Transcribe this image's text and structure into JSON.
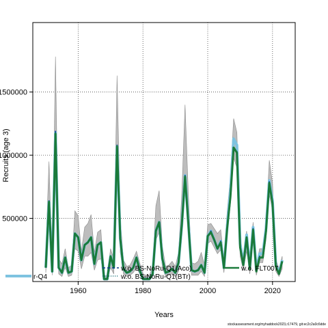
{
  "chart_data": {
    "type": "line",
    "xlabel": "Years",
    "ylabel": "Recruits (age 3)",
    "xlim": [
      1946,
      2027
    ],
    "ylim": [
      0,
      2050000
    ],
    "x_ticks": [
      1960,
      1980,
      2000,
      2020
    ],
    "y_ticks": [
      500000,
      1000000,
      1500000
    ],
    "y_tick_labels": [
      "500000",
      "1000000",
      "1500000"
    ],
    "grid": true,
    "legend_position": "bottom",
    "x": [
      1950,
      1951,
      1952,
      1953,
      1954,
      1955,
      1956,
      1957,
      1958,
      1959,
      1960,
      1961,
      1962,
      1963,
      1964,
      1965,
      1966,
      1967,
      1968,
      1969,
      1970,
      1971,
      1972,
      1973,
      1974,
      1975,
      1976,
      1977,
      1978,
      1979,
      1980,
      1981,
      1982,
      1983,
      1984,
      1985,
      1986,
      1987,
      1988,
      1989,
      1990,
      1991,
      1992,
      1993,
      1994,
      1995,
      1996,
      1997,
      1998,
      1999,
      2000,
      2001,
      2002,
      2003,
      2004,
      2005,
      2006,
      2007,
      2008,
      2009,
      2010,
      2011,
      2012,
      2013,
      2014,
      2015,
      2016,
      2017,
      2018,
      2019,
      2020,
      2021,
      2022,
      2023
    ],
    "band": {
      "upper": [
        240000,
        950000,
        130000,
        1780000,
        180000,
        140000,
        260000,
        110000,
        130000,
        560000,
        520000,
        240000,
        430000,
        460000,
        530000,
        230000,
        390000,
        410000,
        40000,
        50000,
        260000,
        180000,
        1630000,
        500000,
        170000,
        120000,
        130000,
        180000,
        240000,
        150000,
        60000,
        50000,
        50000,
        120000,
        600000,
        720000,
        280000,
        120000,
        130000,
        160000,
        120000,
        230000,
        700000,
        1400000,
        700000,
        150000,
        140000,
        160000,
        230000,
        130000,
        450000,
        460000,
        420000,
        380000,
        410000,
        180000,
        550000,
        830000,
        1290000,
        1180000,
        340000,
        190000,
        400000,
        170000,
        470000,
        130000,
        260000,
        260000,
        480000,
        960000,
        780000,
        180000,
        100000,
        200000
      ],
      "lower": [
        70000,
        480000,
        50000,
        1000000,
        60000,
        40000,
        110000,
        40000,
        50000,
        260000,
        240000,
        100000,
        200000,
        200000,
        230000,
        90000,
        170000,
        180000,
        10000,
        10000,
        110000,
        60000,
        880000,
        230000,
        60000,
        40000,
        50000,
        70000,
        110000,
        60000,
        10000,
        10000,
        10000,
        40000,
        330000,
        390000,
        110000,
        40000,
        50000,
        60000,
        40000,
        80000,
        350000,
        760000,
        370000,
        50000,
        50000,
        50000,
        80000,
        40000,
        300000,
        320000,
        270000,
        220000,
        250000,
        70000,
        380000,
        610000,
        980000,
        900000,
        200000,
        90000,
        240000,
        60000,
        310000,
        50000,
        150000,
        150000,
        330000,
        690000,
        560000,
        80000,
        40000,
        100000
      ]
    },
    "series": [
      {
        "name": "w.o. BS-NoRu-Q1(Aco)",
        "color": "#0b3a8a",
        "dash": "4,3",
        "values": [
          110000,
          640000,
          80000,
          1190000,
          110000,
          70000,
          190000,
          70000,
          80000,
          380000,
          350000,
          170000,
          290000,
          310000,
          350000,
          140000,
          290000,
          310000,
          20000,
          20000,
          200000,
          110000,
          1080000,
          350000,
          100000,
          70000,
          80000,
          110000,
          190000,
          90000,
          20000,
          20000,
          20000,
          60000,
          410000,
          470000,
          180000,
          70000,
          80000,
          100000,
          70000,
          150000,
          460000,
          840000,
          470000,
          90000,
          80000,
          90000,
          130000,
          70000,
          360000,
          400000,
          330000,
          260000,
          320000,
          110000,
          430000,
          680000,
          1060000,
          1030000,
          280000,
          130000,
          360000,
          100000,
          420000,
          80000,
          200000,
          190000,
          400000,
          790000,
          630000,
          120000,
          60000,
          160000
        ]
      },
      {
        "name": "w.o. BS-NoRu-Q1(BTr)",
        "color": "#0a6a70",
        "dash": "1,2",
        "values": [
          110000,
          630000,
          80000,
          1180000,
          110000,
          70000,
          190000,
          70000,
          80000,
          380000,
          350000,
          170000,
          290000,
          310000,
          350000,
          140000,
          290000,
          310000,
          20000,
          20000,
          200000,
          110000,
          1070000,
          340000,
          100000,
          70000,
          80000,
          110000,
          190000,
          90000,
          20000,
          20000,
          20000,
          60000,
          400000,
          470000,
          180000,
          70000,
          80000,
          100000,
          70000,
          150000,
          450000,
          830000,
          460000,
          90000,
          80000,
          90000,
          130000,
          70000,
          360000,
          390000,
          330000,
          260000,
          310000,
          110000,
          420000,
          680000,
          1060000,
          1030000,
          270000,
          130000,
          350000,
          100000,
          410000,
          80000,
          200000,
          190000,
          400000,
          780000,
          620000,
          120000,
          60000,
          160000
        ]
      },
      {
        "name": "w.o. FLT007",
        "color": "#1a7a3a",
        "dash": "",
        "values": [
          110000,
          630000,
          80000,
          1170000,
          110000,
          70000,
          190000,
          70000,
          80000,
          380000,
          350000,
          170000,
          290000,
          310000,
          350000,
          140000,
          290000,
          310000,
          20000,
          20000,
          200000,
          110000,
          1070000,
          340000,
          100000,
          70000,
          80000,
          110000,
          190000,
          90000,
          20000,
          20000,
          20000,
          60000,
          400000,
          470000,
          180000,
          70000,
          80000,
          100000,
          70000,
          150000,
          450000,
          830000,
          460000,
          90000,
          80000,
          90000,
          130000,
          70000,
          360000,
          390000,
          330000,
          260000,
          310000,
          110000,
          420000,
          670000,
          1060000,
          1020000,
          270000,
          130000,
          350000,
          100000,
          410000,
          80000,
          190000,
          190000,
          400000,
          780000,
          620000,
          120000,
          60000,
          160000
        ]
      },
      {
        "name": "r-Q4",
        "color": "#7ec3e0",
        "dash": "",
        "values": [
          110000,
          630000,
          80000,
          1180000,
          110000,
          70000,
          190000,
          70000,
          80000,
          380000,
          350000,
          170000,
          290000,
          310000,
          350000,
          140000,
          290000,
          310000,
          20000,
          20000,
          200000,
          110000,
          1070000,
          340000,
          100000,
          70000,
          80000,
          110000,
          190000,
          90000,
          20000,
          20000,
          20000,
          60000,
          400000,
          470000,
          180000,
          70000,
          80000,
          100000,
          70000,
          150000,
          450000,
          840000,
          470000,
          90000,
          80000,
          90000,
          130000,
          70000,
          360000,
          400000,
          330000,
          260000,
          320000,
          110000,
          430000,
          720000,
          1130000,
          1080000,
          300000,
          140000,
          370000,
          110000,
          430000,
          90000,
          220000,
          220000,
          420000,
          800000,
          640000,
          130000,
          70000,
          170000
        ]
      }
    ]
  },
  "footer_text": "stockassessment.org/myhaddock2023,r17479, git:ec2c2a0c6dde"
}
